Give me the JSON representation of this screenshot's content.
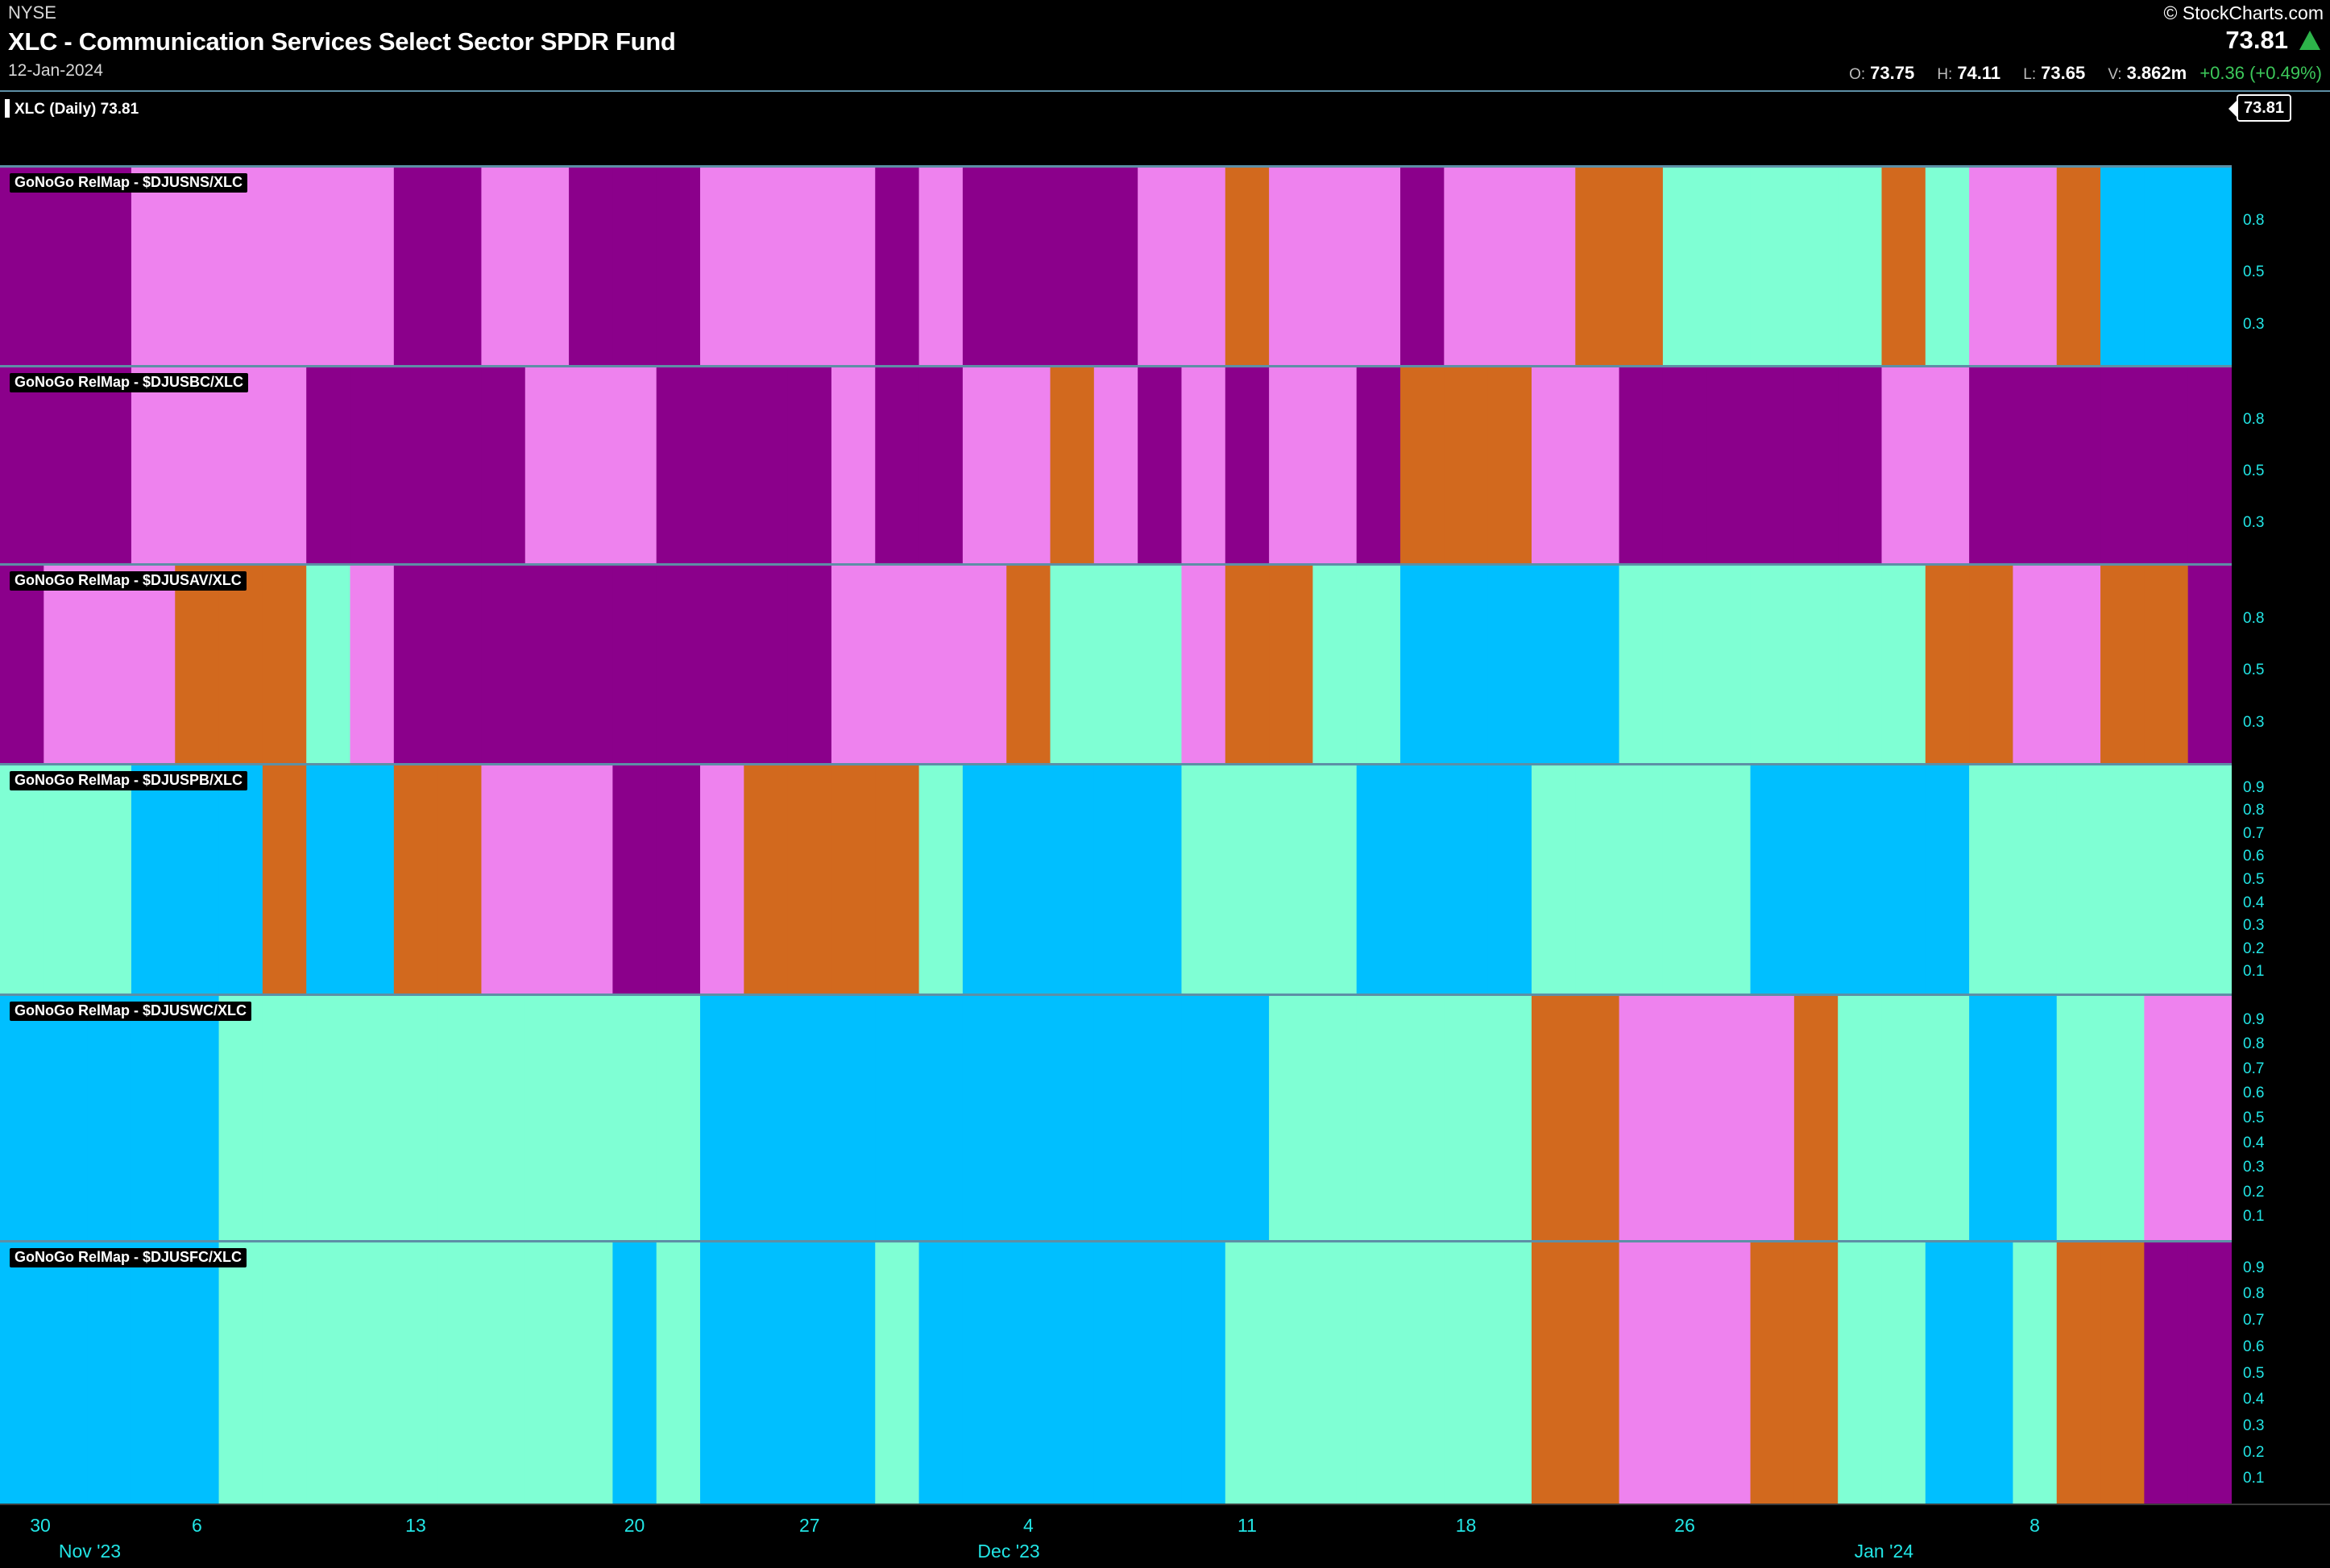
{
  "header": {
    "exchange": "NYSE",
    "title": "XLC - Communication Services Select Sector SPDR Fund",
    "date": "12-Jan-2024",
    "brand": "© StockCharts.com",
    "last": "73.81",
    "open_label": "O:",
    "open": "73.75",
    "high_label": "H:",
    "high": "74.11",
    "low_label": "L:",
    "low": "73.65",
    "vol_label": "V:",
    "volume": "3.862m",
    "change": "+0.36 (+0.49%)"
  },
  "price_panel": {
    "label": "XLC (Daily) 73.81",
    "tag": "73.81"
  },
  "colors": {
    "P": "#8b008b",
    "V": "#ee82ee",
    "O": "#d2691e",
    "A": "#7fffd4",
    "B": "#00bfff",
    "border": "#5d8fa6",
    "axis_text": "#22e5e5"
  },
  "x_axis": {
    "ticks": [
      "30",
      "6",
      "13",
      "20",
      "27",
      "4",
      "11",
      "18",
      "26",
      "8"
    ],
    "months": [
      "Nov '23",
      "Dec '23",
      "Jan '24"
    ]
  },
  "chart_data": {
    "type": "heatmap",
    "description_of_codes": {
      "P": "dark purple",
      "V": "pink",
      "O": "amber",
      "A": "aqua",
      "B": "blue"
    },
    "dates": [
      "2023-10-31",
      "2023-11-01",
      "2023-11-02",
      "2023-11-03",
      "2023-11-06",
      "2023-11-07",
      "2023-11-08",
      "2023-11-09",
      "2023-11-10",
      "2023-11-13",
      "2023-11-14",
      "2023-11-15",
      "2023-11-16",
      "2023-11-17",
      "2023-11-20",
      "2023-11-21",
      "2023-11-22",
      "2023-11-24",
      "2023-11-27",
      "2023-11-28",
      "2023-11-29",
      "2023-11-30",
      "2023-12-01",
      "2023-12-04",
      "2023-12-05",
      "2023-12-06",
      "2023-12-07",
      "2023-12-08",
      "2023-12-11",
      "2023-12-12",
      "2023-12-13",
      "2023-12-14",
      "2023-12-15",
      "2023-12-18",
      "2023-12-19",
      "2023-12-20",
      "2023-12-21",
      "2023-12-22",
      "2023-12-26",
      "2023-12-27",
      "2023-12-28",
      "2023-12-29",
      "2024-01-02",
      "2024-01-03",
      "2024-01-04",
      "2024-01-05",
      "2024-01-08",
      "2024-01-09",
      "2024-01-10",
      "2024-01-11",
      "2024-01-12"
    ],
    "series": [
      {
        "name": "GoNoGo RelMap - $DJUSNS/XLC",
        "yticks": [
          "0.8",
          "0.5",
          "0.3"
        ],
        "values": [
          "P",
          "P",
          "P",
          "V",
          "V",
          "V",
          "V",
          "V",
          "V",
          "P",
          "P",
          "V",
          "V",
          "P",
          "P",
          "P",
          "V",
          "V",
          "V",
          "V",
          "P",
          "V",
          "P",
          "P",
          "P",
          "P",
          "V",
          "V",
          "O",
          "V",
          "V",
          "V",
          "P",
          "V",
          "V",
          "V",
          "O",
          "O",
          "A",
          "A",
          "A",
          "A",
          "A",
          "O",
          "A",
          "V",
          "V",
          "O",
          "B",
          "B",
          "B"
        ]
      },
      {
        "name": "GoNoGo RelMap - $DJUSBC/XLC",
        "yticks": [
          "0.8",
          "0.5",
          "0.3"
        ],
        "values": [
          "P",
          "P",
          "P",
          "V",
          "V",
          "V",
          "V",
          "P",
          "P",
          "P",
          "P",
          "P",
          "V",
          "V",
          "V",
          "P",
          "P",
          "P",
          "P",
          "V",
          "P",
          "P",
          "V",
          "V",
          "O",
          "V",
          "P",
          "V",
          "P",
          "V",
          "V",
          "P",
          "O",
          "O",
          "O",
          "V",
          "V",
          "P",
          "P",
          "P",
          "P",
          "P",
          "P",
          "V",
          "V",
          "P",
          "P",
          "P",
          "P",
          "P",
          "P"
        ]
      },
      {
        "name": "GoNoGo RelMap - $DJUSAV/XLC",
        "yticks": [
          "0.8",
          "0.5",
          "0.3"
        ],
        "values": [
          "P",
          "V",
          "V",
          "V",
          "O",
          "O",
          "O",
          "A",
          "V",
          "P",
          "P",
          "P",
          "P",
          "P",
          "P",
          "P",
          "P",
          "P",
          "P",
          "V",
          "V",
          "V",
          "V",
          "O",
          "A",
          "A",
          "A",
          "V",
          "O",
          "O",
          "A",
          "A",
          "B",
          "B",
          "B",
          "B",
          "B",
          "A",
          "A",
          "A",
          "A",
          "A",
          "A",
          "A",
          "O",
          "O",
          "V",
          "V",
          "O",
          "O",
          "P"
        ]
      },
      {
        "name": "GoNoGo RelMap - $DJUSPB/XLC",
        "yticks": [
          "0.9",
          "0.8",
          "0.7",
          "0.6",
          "0.5",
          "0.4",
          "0.3",
          "0.2",
          "0.1"
        ],
        "values": [
          "A",
          "A",
          "A",
          "B",
          "B",
          "B",
          "O",
          "B",
          "B",
          "O",
          "O",
          "V",
          "V",
          "V",
          "P",
          "P",
          "V",
          "O",
          "O",
          "O",
          "O",
          "A",
          "B",
          "B",
          "B",
          "B",
          "B",
          "A",
          "A",
          "A",
          "A",
          "B",
          "B",
          "B",
          "B",
          "A",
          "A",
          "A",
          "A",
          "A",
          "B",
          "B",
          "B",
          "B",
          "B",
          "A",
          "A",
          "A",
          "A",
          "A",
          "A"
        ]
      },
      {
        "name": "GoNoGo RelMap - $DJUSWC/XLC",
        "yticks": [
          "0.9",
          "0.8",
          "0.7",
          "0.6",
          "0.5",
          "0.4",
          "0.3",
          "0.2",
          "0.1"
        ],
        "values": [
          "B",
          "B",
          "B",
          "B",
          "B",
          "A",
          "A",
          "A",
          "A",
          "A",
          "A",
          "A",
          "A",
          "A",
          "A",
          "A",
          "B",
          "B",
          "B",
          "B",
          "B",
          "B",
          "B",
          "B",
          "B",
          "B",
          "B",
          "B",
          "B",
          "A",
          "A",
          "A",
          "A",
          "A",
          "A",
          "O",
          "O",
          "V",
          "V",
          "V",
          "V",
          "O",
          "A",
          "A",
          "A",
          "B",
          "B",
          "A",
          "A",
          "V",
          "V"
        ]
      },
      {
        "name": "GoNoGo RelMap - $DJUSFC/XLC",
        "yticks": [
          "0.9",
          "0.8",
          "0.7",
          "0.6",
          "0.5",
          "0.4",
          "0.3",
          "0.2",
          "0.1"
        ],
        "values": [
          "B",
          "B",
          "B",
          "B",
          "B",
          "A",
          "A",
          "A",
          "A",
          "A",
          "A",
          "A",
          "A",
          "A",
          "B",
          "A",
          "B",
          "B",
          "B",
          "B",
          "A",
          "B",
          "B",
          "B",
          "B",
          "B",
          "B",
          "B",
          "A",
          "A",
          "A",
          "A",
          "A",
          "A",
          "A",
          "O",
          "O",
          "V",
          "V",
          "V",
          "O",
          "O",
          "A",
          "A",
          "B",
          "B",
          "A",
          "O",
          "O",
          "P",
          "P"
        ]
      }
    ]
  }
}
